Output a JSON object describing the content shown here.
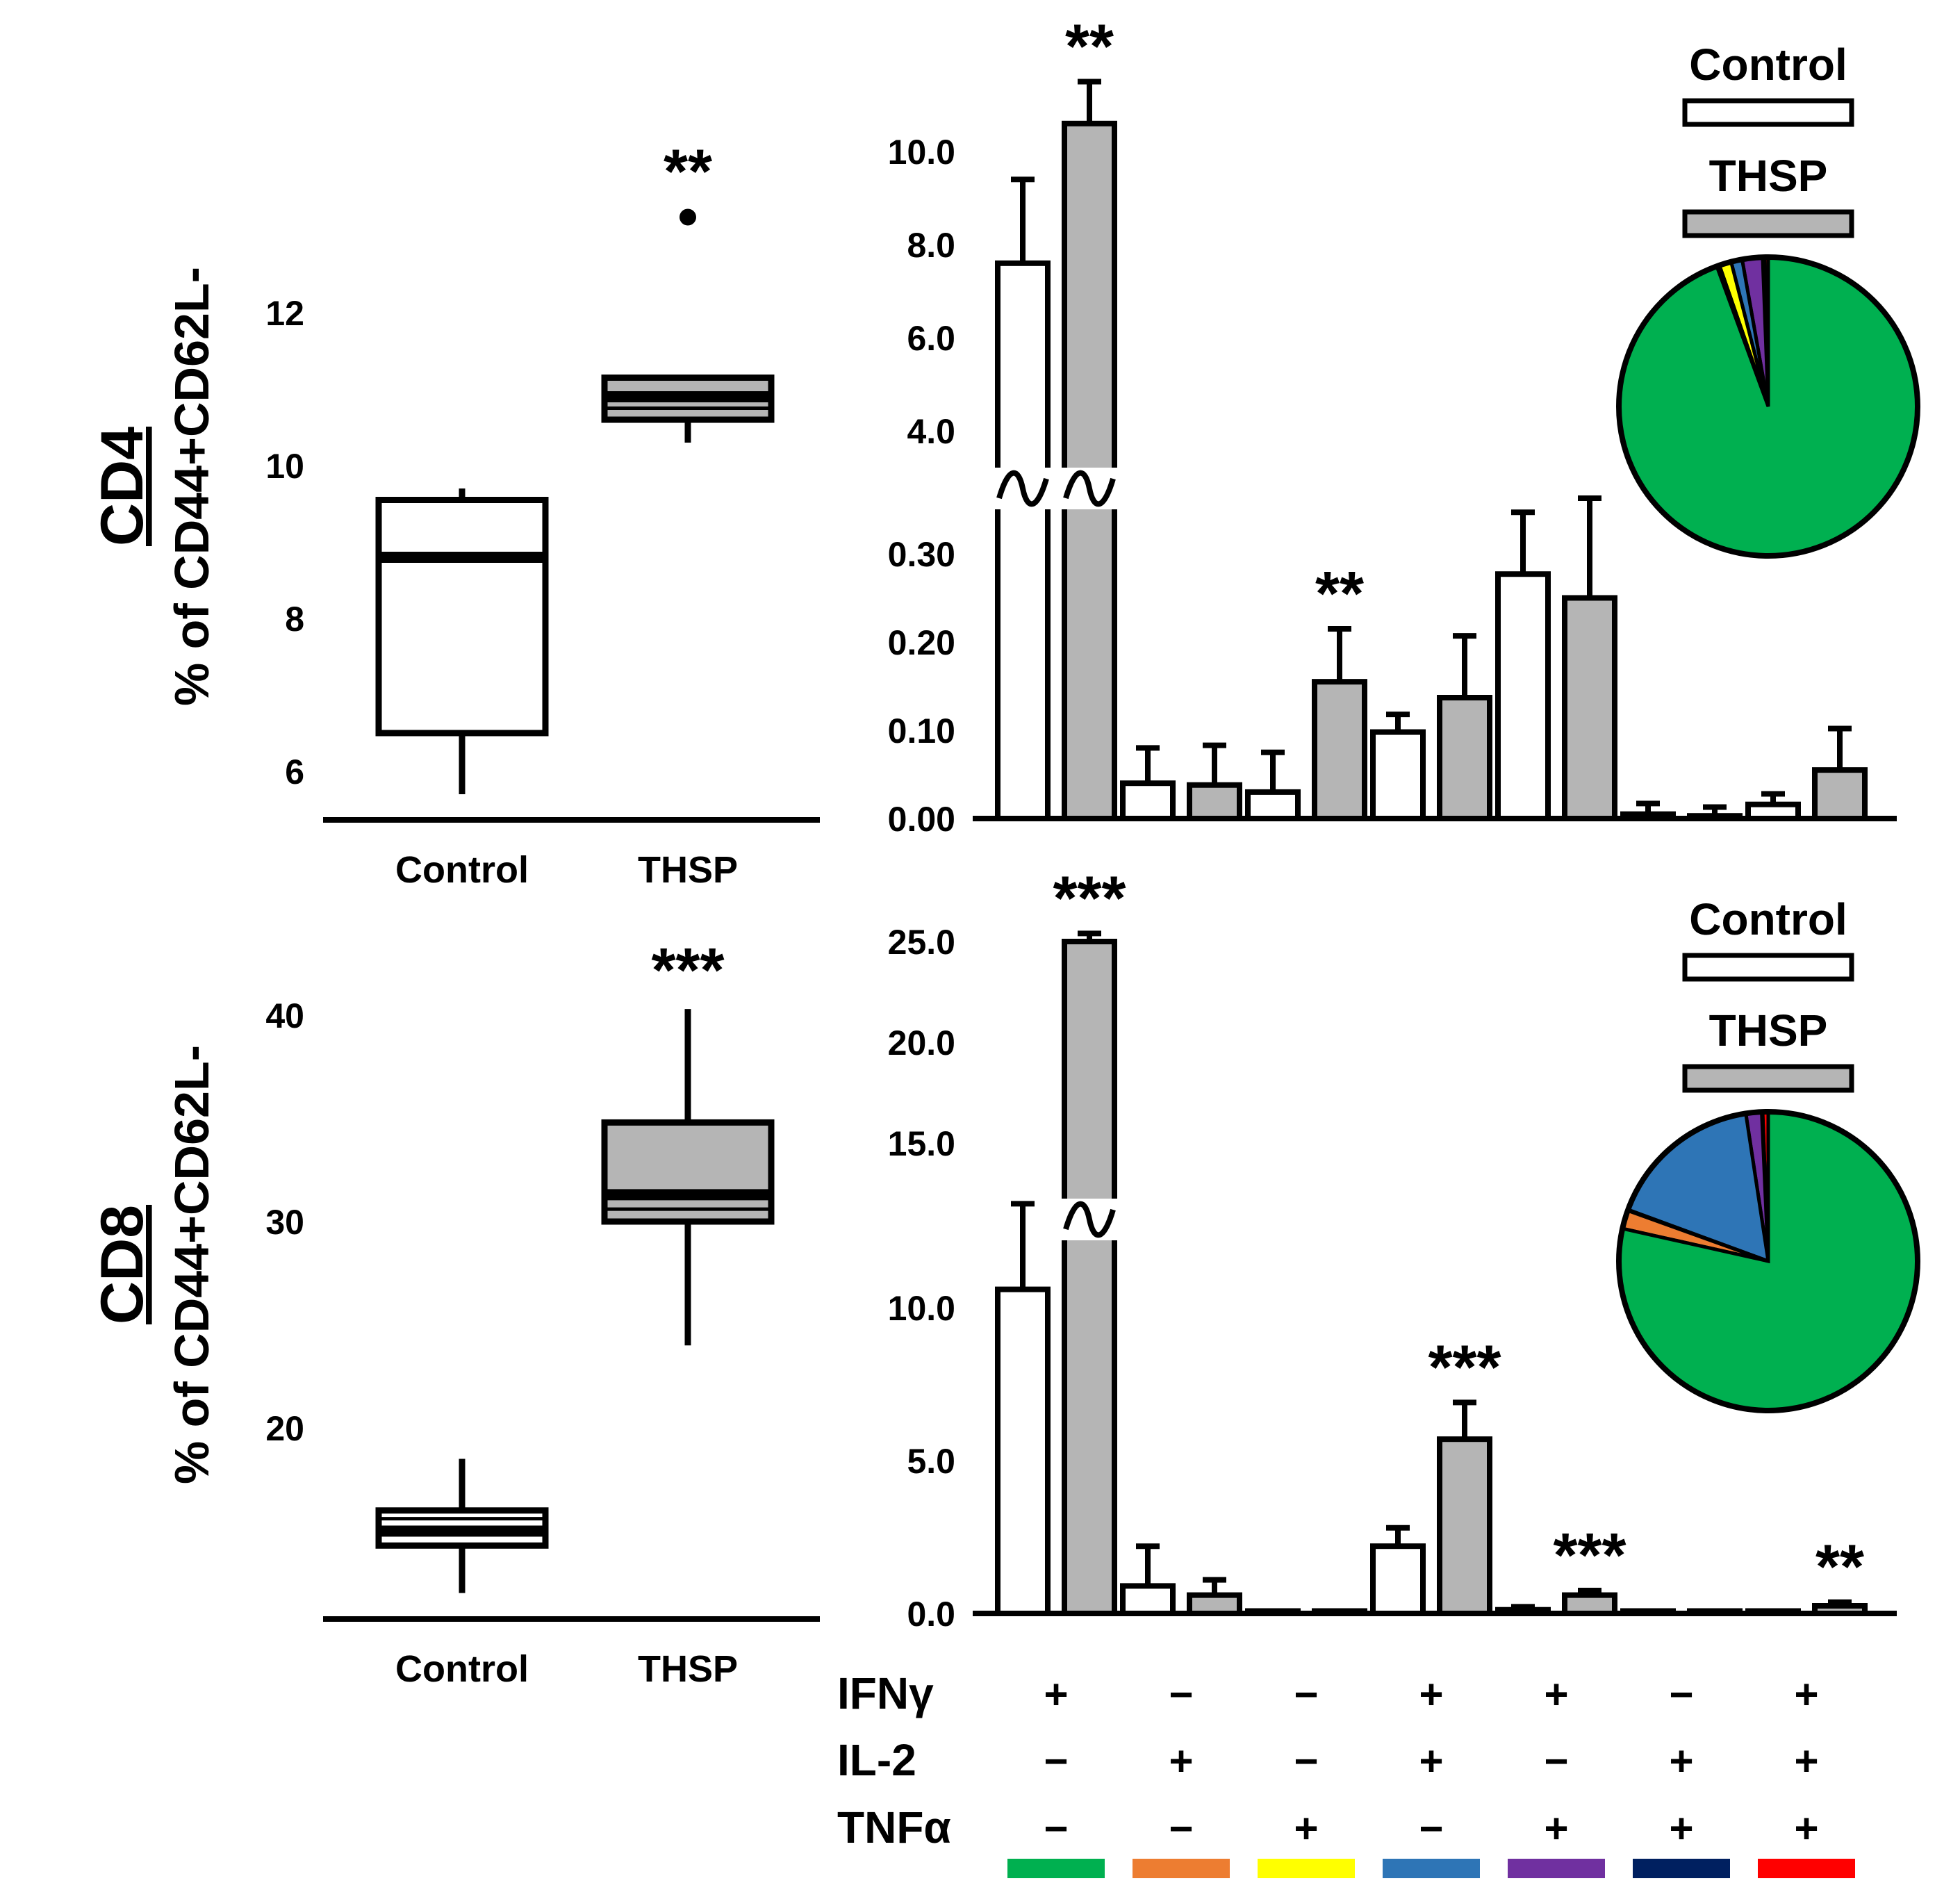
{
  "colors": {
    "control": "#ffffff",
    "thsp": "#b5b5b5",
    "outline": "#000000",
    "IFNg": "#00b050",
    "IL2": "#ed7d31",
    "TNFa": "#ffff00",
    "IFNg_IL2": "#2e75b6",
    "IFNg_TNFa": "#7030a0",
    "IL2_TNFa": "#002060",
    "IFNg_IL2_TNFa": "#ff0000"
  },
  "chart_data": [
    {
      "id": "cd4_box",
      "type": "box",
      "cell": "CD4",
      "ylabel": "% of CD44+CD62L-",
      "ylim": [
        5.4,
        14.0
      ],
      "yticks": [
        "6",
        "8",
        "10",
        "12"
      ],
      "categories": [
        "Control",
        "THSP"
      ],
      "boxes": [
        {
          "name": "Control",
          "min": 5.7,
          "q1": 6.5,
          "median": 8.8,
          "mean": 8.75,
          "q3": 9.55,
          "max": 9.7,
          "outliers": [],
          "sig": ""
        },
        {
          "name": "THSP",
          "min": 10.3,
          "q1": 10.6,
          "median": 10.9,
          "mean": 10.75,
          "q3": 11.15,
          "max": 11.15,
          "outliers": [
            13.25
          ],
          "sig": "**"
        }
      ]
    },
    {
      "id": "cd4_bar",
      "type": "bar",
      "cell": "CD4",
      "series_names": [
        "Control",
        "THSP"
      ],
      "yticks_upper": [
        "4.0",
        "6.0",
        "8.0",
        "10.0"
      ],
      "yticks_lower": [
        "0.00",
        "0.10",
        "0.20",
        "0.30"
      ],
      "axis_break": {
        "lower_max": 0.33,
        "upper_min": 4.0,
        "upper_max": 10.5
      },
      "groups": [
        {
          "control": 7.6,
          "control_err": 1.8,
          "thsp": 10.6,
          "thsp_err": 0.9,
          "control_break": true,
          "thsp_break": true,
          "sig": "**"
        },
        {
          "control": 0.04,
          "control_err": 0.04,
          "thsp": 0.038,
          "thsp_err": 0.045,
          "sig": ""
        },
        {
          "control": 0.03,
          "control_err": 0.045,
          "thsp": 0.155,
          "thsp_err": 0.06,
          "sig": "**"
        },
        {
          "control": 0.098,
          "control_err": 0.02,
          "thsp": 0.137,
          "thsp_err": 0.07,
          "sig": ""
        },
        {
          "control": 0.277,
          "control_err": 0.07,
          "thsp": 0.25,
          "thsp_err": 0.113,
          "sig": ""
        },
        {
          "control": 0.005,
          "control_err": 0.012,
          "thsp": 0.003,
          "thsp_err": 0.01,
          "sig": ""
        },
        {
          "control": 0.016,
          "control_err": 0.012,
          "thsp": 0.055,
          "thsp_err": 0.047,
          "sig": ""
        }
      ],
      "legend": [
        "Control",
        "THSP"
      ],
      "pie": [
        {
          "label": "IFNγ+ IL-2+ TNFα+",
          "value": 0.4,
          "color_key": "IFNg_IL2_TNFa"
        },
        {
          "label": "IL-2+ TNFα+",
          "value": 0.2,
          "color_key": "IL2_TNFa"
        },
        {
          "label": "IFNγ+ TNFα+",
          "value": 2.2,
          "color_key": "IFNg_TNFa"
        },
        {
          "label": "IFNγ+ IL-2+",
          "value": 1.2,
          "color_key": "IFNg_IL2"
        },
        {
          "label": "TNFα+",
          "value": 1.3,
          "color_key": "TNFa"
        },
        {
          "label": "IL-2+",
          "value": 0.3,
          "color_key": "IL2"
        },
        {
          "label": "IFNγ+",
          "value": 94.4,
          "color_key": "IFNg"
        }
      ]
    },
    {
      "id": "cd8_box",
      "type": "box",
      "cell": "CD8",
      "ylabel": "% of CD44+CD62L-",
      "ylim": [
        11,
        44
      ],
      "yticks": [
        "20",
        "30",
        "40"
      ],
      "categories": [
        "Control",
        "THSP"
      ],
      "boxes": [
        {
          "name": "Control",
          "min": 12.0,
          "q1": 14.3,
          "median": 15.0,
          "mean": 15.6,
          "q3": 16.0,
          "max": 18.5,
          "outliers": [],
          "sig": ""
        },
        {
          "name": "THSP",
          "min": 24.0,
          "q1": 30.0,
          "median": 31.3,
          "mean": 30.6,
          "q3": 34.8,
          "max": 40.3,
          "outliers": [],
          "sig": "***"
        }
      ]
    },
    {
      "id": "cd8_bar",
      "type": "bar",
      "cell": "CD8",
      "series_names": [
        "Control",
        "THSP"
      ],
      "yticks_lower": [
        "0.0",
        "5.0",
        "10.0"
      ],
      "yticks_upper": [
        "15.0",
        "20.0",
        "25.0"
      ],
      "axis_break": {
        "lower_max": 11.0,
        "upper_min": 12.0,
        "upper_max": 25.0
      },
      "groups": [
        {
          "control": 10.6,
          "control_err": 2.8,
          "thsp": 25.0,
          "thsp_err": 0.4,
          "control_break": false,
          "thsp_break": true,
          "sig": "***"
        },
        {
          "control": 0.9,
          "control_err": 1.3,
          "thsp": 0.6,
          "thsp_err": 0.5,
          "sig": ""
        },
        {
          "control": 0.08,
          "control_err": 0.0,
          "thsp": 0.08,
          "thsp_err": 0.0,
          "sig": ""
        },
        {
          "control": 2.2,
          "control_err": 0.6,
          "thsp": 5.7,
          "thsp_err": 1.2,
          "sig": "***"
        },
        {
          "control": 0.12,
          "control_err": 0.1,
          "thsp": 0.6,
          "thsp_err": 0.15,
          "sig": "***"
        },
        {
          "control": 0.08,
          "control_err": 0.0,
          "thsp": 0.08,
          "thsp_err": 0.0,
          "sig": ""
        },
        {
          "control": 0.08,
          "control_err": 0.0,
          "thsp": 0.25,
          "thsp_err": 0.12,
          "sig": "**"
        }
      ],
      "legend": [
        "Control",
        "THSP"
      ],
      "pie": [
        {
          "label": "IFNγ+ IL-2+ TNFα+",
          "value": 0.6,
          "color_key": "IFNg_IL2_TNFa"
        },
        {
          "label": "IL-2+ TNFα+",
          "value": 0.1,
          "color_key": "IL2_TNFa"
        },
        {
          "label": "IFNγ+ TNFα+",
          "value": 1.7,
          "color_key": "IFNg_TNFa"
        },
        {
          "label": "IFNγ+ IL-2+",
          "value": 17.0,
          "color_key": "IFNg_IL2"
        },
        {
          "label": "TNFα+",
          "value": 0.1,
          "color_key": "TNFa"
        },
        {
          "label": "IL-2+",
          "value": 2.0,
          "color_key": "IL2"
        },
        {
          "label": "IFNγ+",
          "value": 78.5,
          "color_key": "IFNg"
        }
      ]
    }
  ],
  "combination_table": {
    "rows": [
      {
        "label": "IFNγ",
        "values": [
          "+",
          "−",
          "−",
          "+",
          "+",
          "−",
          "+"
        ]
      },
      {
        "label": "IL-2",
        "values": [
          "−",
          "+",
          "−",
          "+",
          "−",
          "+",
          "+"
        ]
      },
      {
        "label": "TNFα",
        "values": [
          "−",
          "−",
          "+",
          "−",
          "+",
          "+",
          "+"
        ]
      }
    ],
    "color_keys": [
      "IFNg",
      "IL2",
      "TNFa",
      "IFNg_IL2",
      "IFNg_TNFa",
      "IL2_TNFa",
      "IFNg_IL2_TNFa"
    ]
  }
}
